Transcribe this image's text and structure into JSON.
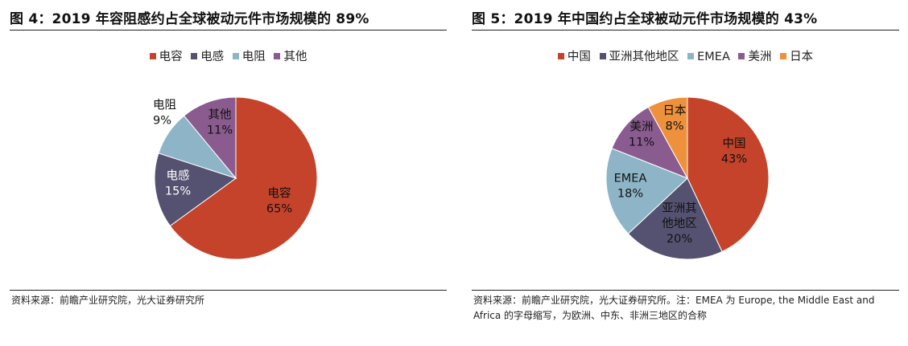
{
  "chart_data": [
    {
      "type": "pie",
      "title": "图 4：2019 年容阻感约占全球被动元件市场规模的 89%",
      "legend_position": "top",
      "slices": [
        {
          "name": "电容",
          "value": 65,
          "label": "65%",
          "color": "#c4432a",
          "text_color": "#111111"
        },
        {
          "name": "电感",
          "value": 15,
          "label": "15%",
          "color": "#545270",
          "text_color": "#ffffff"
        },
        {
          "name": "电阻",
          "value": 9,
          "label": "9%",
          "color": "#8db5c7",
          "text_color": "#111111"
        },
        {
          "name": "其他",
          "value": 11,
          "label": "11%",
          "color": "#8a5b8f",
          "text_color": "#111111"
        }
      ],
      "source": "资料来源：前瞻产业研究院，光大证券研究所"
    },
    {
      "type": "pie",
      "title": "图 5：2019 年中国约占全球被动元件市场规模的 43%",
      "legend_position": "top",
      "slices": [
        {
          "name": "中国",
          "value": 43,
          "label": "43%",
          "color": "#c4432a",
          "text_color": "#111111"
        },
        {
          "name": "亚洲其他地区",
          "value": 20,
          "label": "20%",
          "color": "#545270",
          "text_color": "#111111"
        },
        {
          "name": "EMEA",
          "value": 18,
          "label": "18%",
          "color": "#8db5c7",
          "text_color": "#111111"
        },
        {
          "name": "美洲",
          "value": 11,
          "label": "11%",
          "color": "#8a5b8f",
          "text_color": "#111111"
        },
        {
          "name": "日本",
          "value": 8,
          "label": "8%",
          "color": "#ee913d",
          "text_color": "#111111"
        }
      ],
      "source_lines": [
        "资料来源：前瞻产业研究院，光大证券研究所。注：EMEA 为 Europe, the Middle East and",
        "Africa 的字母缩写，为欧洲、中东、非洲三地区的合称"
      ]
    }
  ]
}
